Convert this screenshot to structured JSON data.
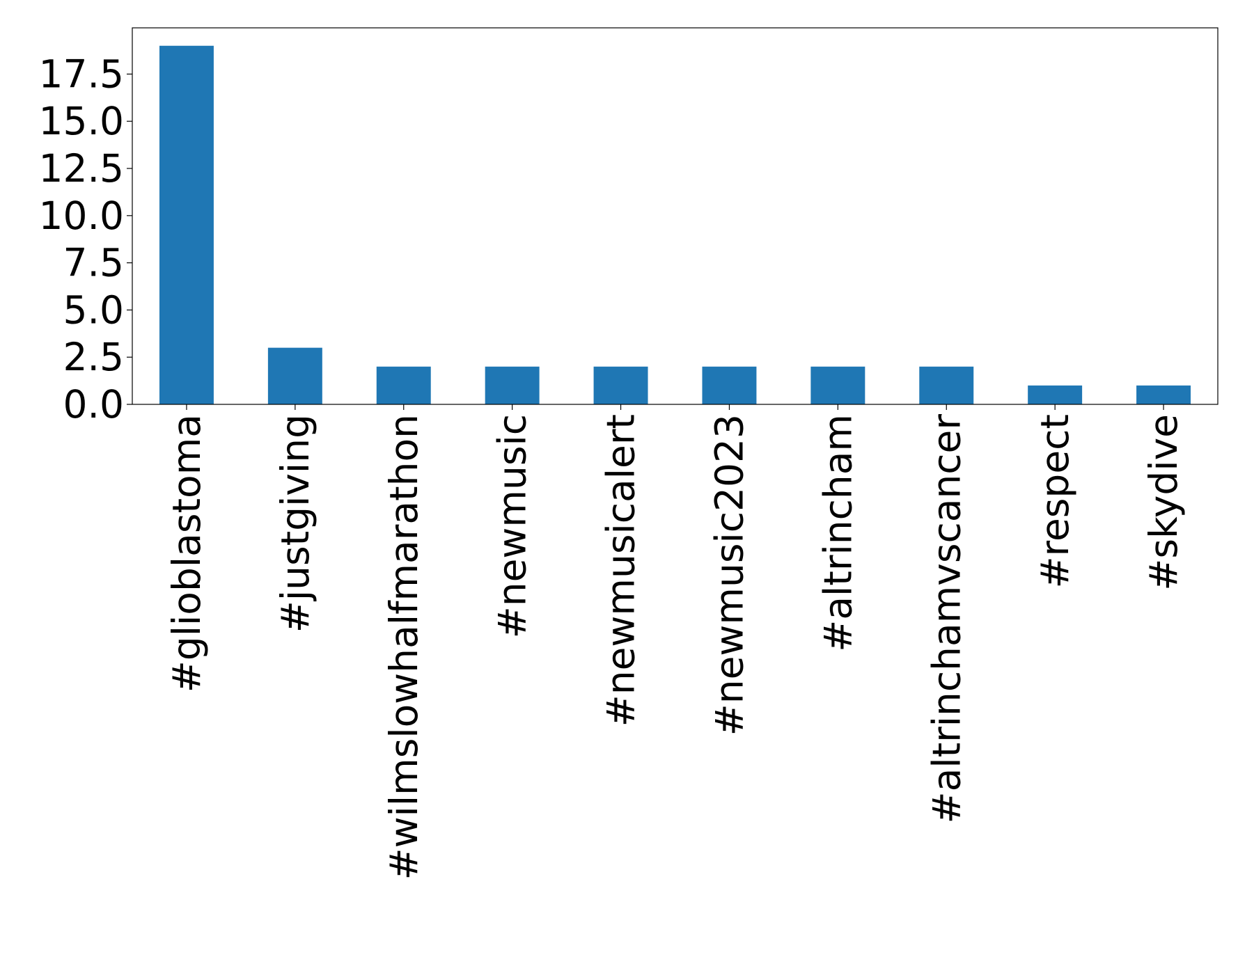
{
  "chart_data": {
    "type": "bar",
    "categories": [
      "#glioblastoma",
      "#justgiving",
      "#wilmslowhalfmarathon",
      "#newmusic",
      "#newmusicalert",
      "#newmusic2023",
      "#altrincham",
      "#altrinchamvscancer",
      "#respect",
      "#skydive"
    ],
    "values": [
      19,
      3,
      2,
      2,
      2,
      2,
      2,
      2,
      1,
      1
    ],
    "color": "#1f77b4",
    "ylim": [
      0,
      19.95
    ],
    "yticks": [
      {
        "value": 0,
        "label": "0.0"
      },
      {
        "value": 2.5,
        "label": "2.5"
      },
      {
        "value": 5,
        "label": "5.0"
      },
      {
        "value": 7.5,
        "label": "7.5"
      },
      {
        "value": 10,
        "label": "10.0"
      },
      {
        "value": 12.5,
        "label": "12.5"
      },
      {
        "value": 15,
        "label": "15.0"
      },
      {
        "value": 17.5,
        "label": "17.5"
      }
    ],
    "grid": false
  }
}
